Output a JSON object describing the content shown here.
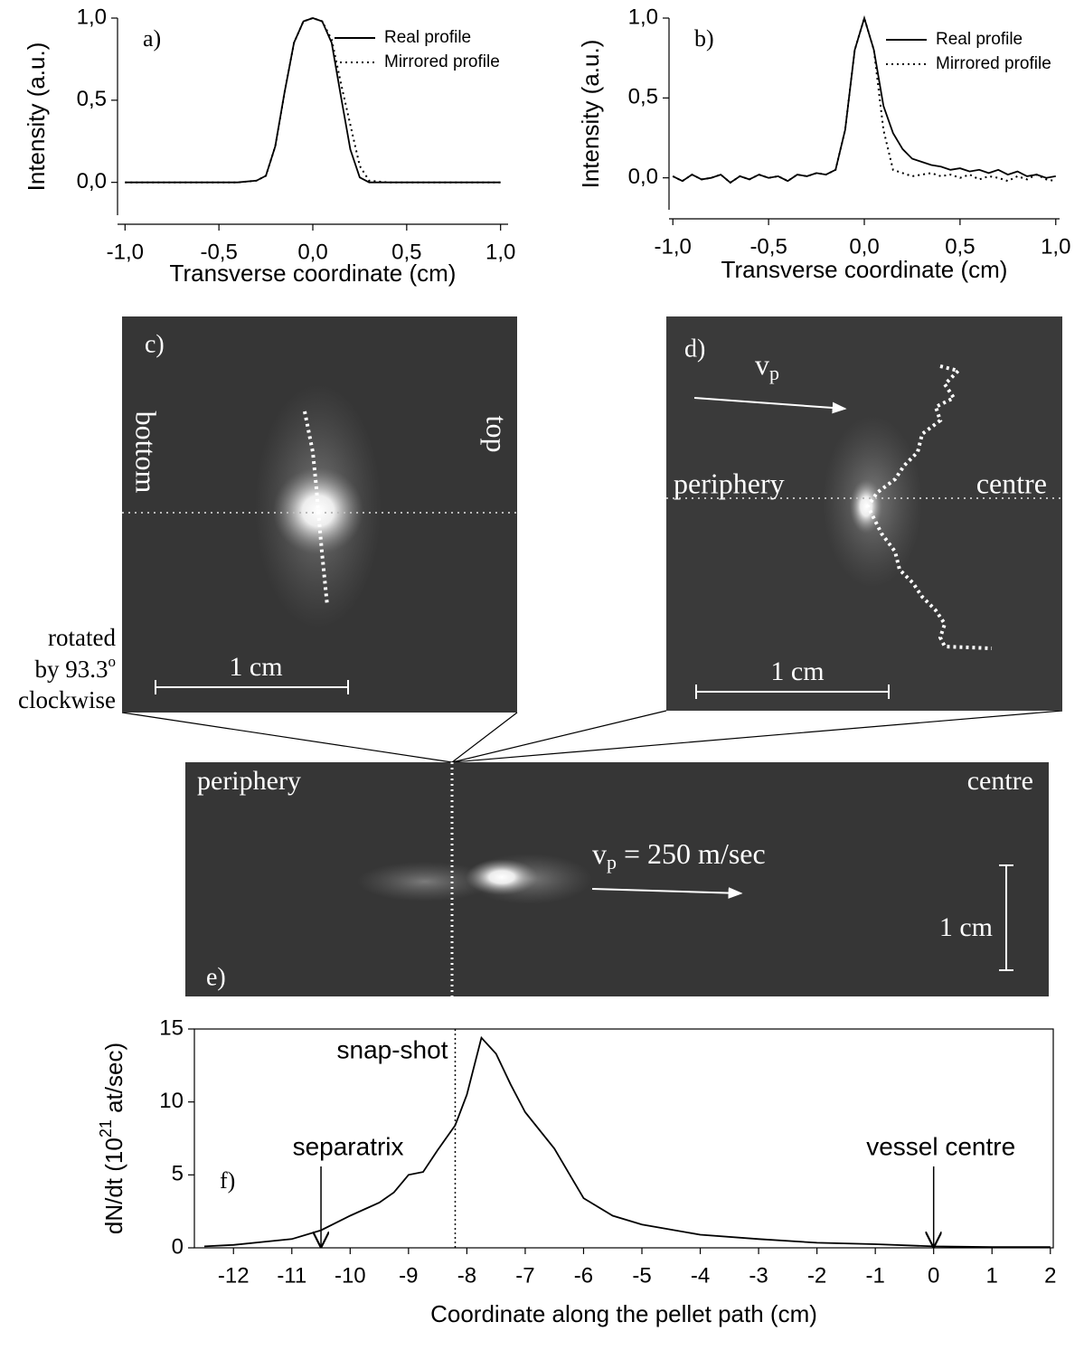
{
  "chart_data": [
    {
      "type": "line",
      "label": "a)",
      "xlabel": "Transverse coordinate (cm)",
      "ylabel": "Intensity (a.u.)",
      "x": [
        -1,
        -0.8,
        -0.6,
        -0.4,
        -0.3,
        -0.25,
        -0.2,
        -0.15,
        -0.1,
        -0.05,
        0,
        0.05,
        0.1,
        0.15,
        0.2,
        0.25,
        0.3,
        0.4,
        0.6,
        0.8,
        1
      ],
      "series": [
        {
          "name": "Real profile",
          "color": "#000000",
          "style": "solid",
          "values": [
            0,
            0,
            0,
            0,
            0.01,
            0.04,
            0.22,
            0.55,
            0.85,
            0.98,
            1,
            0.98,
            0.85,
            0.52,
            0.2,
            0.03,
            0,
            0,
            0,
            0,
            0
          ]
        },
        {
          "name": "Mirrored profile",
          "color": "#000000",
          "style": "dotted",
          "values": [
            0,
            0,
            0,
            0,
            0.01,
            0.04,
            0.22,
            0.55,
            0.85,
            0.98,
            1,
            0.98,
            0.87,
            0.6,
            0.35,
            0.1,
            0.01,
            0,
            0,
            0,
            0
          ]
        }
      ],
      "xlim": [
        -1.04,
        1.04
      ],
      "ylim": [
        -0.2,
        1.0
      ],
      "xticks": [
        {
          "value": -1,
          "label": "-1,0"
        },
        {
          "value": -0.5,
          "label": "-0,5"
        },
        {
          "value": 0,
          "label": "0,0"
        },
        {
          "value": 0.5,
          "label": "0,5"
        },
        {
          "value": 1,
          "label": "1,0"
        }
      ],
      "yticks": [
        {
          "value": 0,
          "label": "0,0"
        },
        {
          "value": 0.5,
          "label": "0,5"
        },
        {
          "value": 1,
          "label": "1,0"
        }
      ],
      "legend": "upper right"
    },
    {
      "type": "line",
      "label": "b)",
      "xlabel": "Transverse coordinate (cm)",
      "ylabel": "Intensity (a.u.)",
      "x": [
        -1,
        -0.95,
        -0.9,
        -0.85,
        -0.8,
        -0.75,
        -0.7,
        -0.65,
        -0.6,
        -0.55,
        -0.5,
        -0.45,
        -0.4,
        -0.35,
        -0.3,
        -0.25,
        -0.2,
        -0.15,
        -0.1,
        -0.05,
        0,
        0.05,
        0.1,
        0.15,
        0.2,
        0.25,
        0.3,
        0.35,
        0.4,
        0.45,
        0.5,
        0.55,
        0.6,
        0.65,
        0.7,
        0.75,
        0.8,
        0.85,
        0.9,
        0.95,
        1
      ],
      "series": [
        {
          "name": "Real profile",
          "color": "#000000",
          "style": "solid",
          "values": [
            0.01,
            -0.02,
            0.02,
            -0.01,
            0,
            0.02,
            -0.03,
            0.01,
            -0.01,
            0.02,
            0,
            0.01,
            -0.02,
            0.02,
            0.01,
            0.03,
            0.02,
            0.05,
            0.3,
            0.8,
            1,
            0.8,
            0.45,
            0.28,
            0.18,
            0.12,
            0.1,
            0.08,
            0.07,
            0.05,
            0.06,
            0.04,
            0.05,
            0.03,
            0.05,
            0.02,
            0.04,
            0.01,
            0.02,
            0,
            0.01
          ]
        },
        {
          "name": "Mirrored profile",
          "color": "#000000",
          "style": "dotted",
          "values": [
            0.01,
            -0.02,
            0.02,
            -0.01,
            0,
            0.02,
            -0.03,
            0.01,
            -0.01,
            0.02,
            0,
            0.01,
            -0.02,
            0.02,
            0.01,
            0.03,
            0.02,
            0.05,
            0.3,
            0.8,
            1,
            0.8,
            0.3,
            0.05,
            0.03,
            0.01,
            0.02,
            0.03,
            0.01,
            0.02,
            0,
            0.02,
            -0.01,
            0.01,
            0,
            -0.02,
            0.01,
            -0.01,
            0.02,
            -0.01,
            -0.02
          ]
        }
      ],
      "xlim": [
        -1.02,
        1.02
      ],
      "ylim": [
        -0.2,
        1.0
      ],
      "xticks": [
        {
          "value": -1,
          "label": "-1,0"
        },
        {
          "value": -0.5,
          "label": "-0,5"
        },
        {
          "value": 0,
          "label": "0,0"
        },
        {
          "value": 0.5,
          "label": "0,5"
        },
        {
          "value": 1,
          "label": "1,0"
        }
      ],
      "yticks": [
        {
          "value": 0,
          "label": "0,0"
        },
        {
          "value": 0.5,
          "label": "0,5"
        },
        {
          "value": 1,
          "label": "1,0"
        }
      ],
      "legend": "upper right"
    },
    {
      "type": "line",
      "label": "f)",
      "xlabel": "Coordinate along the pellet path (cm)",
      "ylabel_parts": {
        "main": "dN/dt (10",
        "sup": "21",
        "end": " at/sec)"
      },
      "x": [
        -12.5,
        -12,
        -11.5,
        -11,
        -10.5,
        -10,
        -9.5,
        -9.25,
        -9,
        -8.75,
        -8.5,
        -8.2,
        -8,
        -7.75,
        -7.5,
        -7.25,
        -7,
        -6.5,
        -6,
        -5.5,
        -5,
        -4,
        -3,
        -2,
        -1,
        0,
        1,
        2
      ],
      "series": [
        {
          "name": null,
          "color": "#000000",
          "style": "solid",
          "values": [
            0.1,
            0.2,
            0.4,
            0.6,
            1.2,
            2.2,
            3.1,
            3.8,
            5.0,
            5.2,
            6.7,
            8.4,
            10.5,
            14.4,
            13.3,
            11.2,
            9.3,
            6.8,
            3.4,
            2.2,
            1.6,
            0.9,
            0.6,
            0.35,
            0.25,
            0.1,
            0.05,
            0.05
          ]
        }
      ],
      "xlim": [
        -12.67,
        2.05
      ],
      "ylim": [
        0,
        15
      ],
      "xticks": [
        -12,
        -11,
        -10,
        -9,
        -8,
        -7,
        -6,
        -5,
        -4,
        -3,
        -2,
        -1,
        0,
        1,
        2
      ],
      "yticks": [
        0,
        5,
        10,
        15
      ],
      "annotations": [
        {
          "text": "snap-shot",
          "x": -8.2
        },
        {
          "text": "separatrix",
          "x": -10.5
        },
        {
          "text": "vessel centre",
          "x": 0
        }
      ]
    }
  ],
  "images": {
    "c": {
      "label": "c)",
      "left": "bottom",
      "right": "top",
      "scale": "1 cm",
      "rotation_note": {
        "line1": "rotated",
        "line2": "by 93.3",
        "degree": "o",
        "line3": "clockwise"
      }
    },
    "d": {
      "label": "d)",
      "velocity": {
        "v": "v",
        "sub": "p"
      },
      "left": "periphery",
      "right": "centre",
      "scale": "1 cm"
    },
    "e": {
      "label": "e)",
      "left": "periphery",
      "right": "centre",
      "velocity": {
        "v": "v",
        "sub": "p",
        "rest": " = 250 m/sec"
      },
      "scale": "1 cm"
    }
  }
}
